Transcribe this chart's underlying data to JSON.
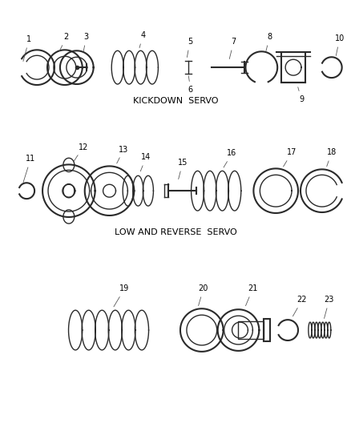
{
  "background_color": "#ffffff",
  "line_color": "#2a2a2a",
  "label_color": "#000000",
  "section1_label": "KICKDOWN  SERVO",
  "section2_label": "LOW AND REVERSE  SERVO",
  "fig_width": 4.38,
  "fig_height": 5.33,
  "dpi": 100,
  "font_size_labels": 7,
  "font_size_section": 8
}
